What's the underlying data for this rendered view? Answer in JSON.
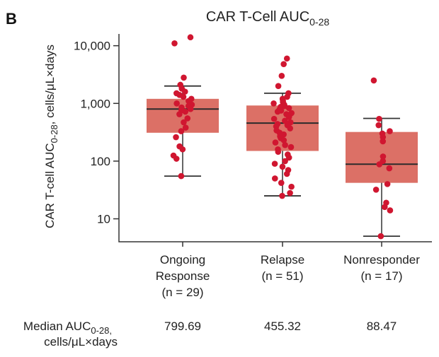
{
  "panel_label": "B",
  "chart_data": {
    "type": "box",
    "title": "CAR T-Cell AUC",
    "title_sub": "0-28",
    "ylabel": "CAR T-cell AUC",
    "ylabel_sub": "0-28",
    "ylabel_rest": ", cells/μL×days",
    "yscale": "log",
    "ylim": [
      4,
      16000
    ],
    "yticks": [
      10,
      100,
      1000,
      10000
    ],
    "ytick_labels": [
      "10",
      "100",
      "1,000",
      "10,000"
    ],
    "box_color": "#dc7066",
    "point_color": "#d01630",
    "groups": [
      {
        "label_lines": [
          "Ongoing",
          "Response",
          "(n = 29)"
        ],
        "q1": 310,
        "median": 799.69,
        "q3": 1200,
        "whisker_low": 55,
        "whisker_high": 2000,
        "points": [
          14000,
          11000,
          2800,
          2100,
          1800,
          1600,
          1500,
          1400,
          1300,
          1200,
          1100,
          1000,
          950,
          900,
          850,
          800,
          760,
          720,
          650,
          550,
          470,
          380,
          330,
          260,
          180,
          160,
          125,
          110,
          55
        ]
      },
      {
        "label_lines": [
          "Relapse",
          "(n = 51)"
        ],
        "q1": 150,
        "median": 455.32,
        "q3": 920,
        "whisker_low": 25,
        "whisker_high": 1500,
        "points": [
          6000,
          4800,
          3000,
          2000,
          1500,
          1300,
          1200,
          1100,
          1050,
          1000,
          950,
          900,
          870,
          830,
          790,
          750,
          720,
          680,
          650,
          610,
          580,
          540,
          500,
          470,
          440,
          420,
          400,
          370,
          340,
          310,
          290,
          270,
          250,
          230,
          210,
          190,
          175,
          160,
          145,
          130,
          115,
          100,
          90,
          80,
          70,
          60,
          50,
          42,
          36,
          28,
          25
        ]
      },
      {
        "label_lines": [
          "Nonresponder",
          "(n = 17)"
        ],
        "q1": 42,
        "median": 88.47,
        "q3": 320,
        "whisker_low": 5,
        "whisker_high": 550,
        "points": [
          2500,
          540,
          420,
          330,
          300,
          260,
          220,
          120,
          100,
          88,
          75,
          40,
          32,
          19,
          16,
          14,
          5
        ]
      }
    ],
    "median_row": {
      "label": "Median AUC",
      "label_sub": "0-28,",
      "label_line2": "cells/μL×days",
      "values": [
        "799.69",
        "455.32",
        "88.47"
      ]
    }
  }
}
